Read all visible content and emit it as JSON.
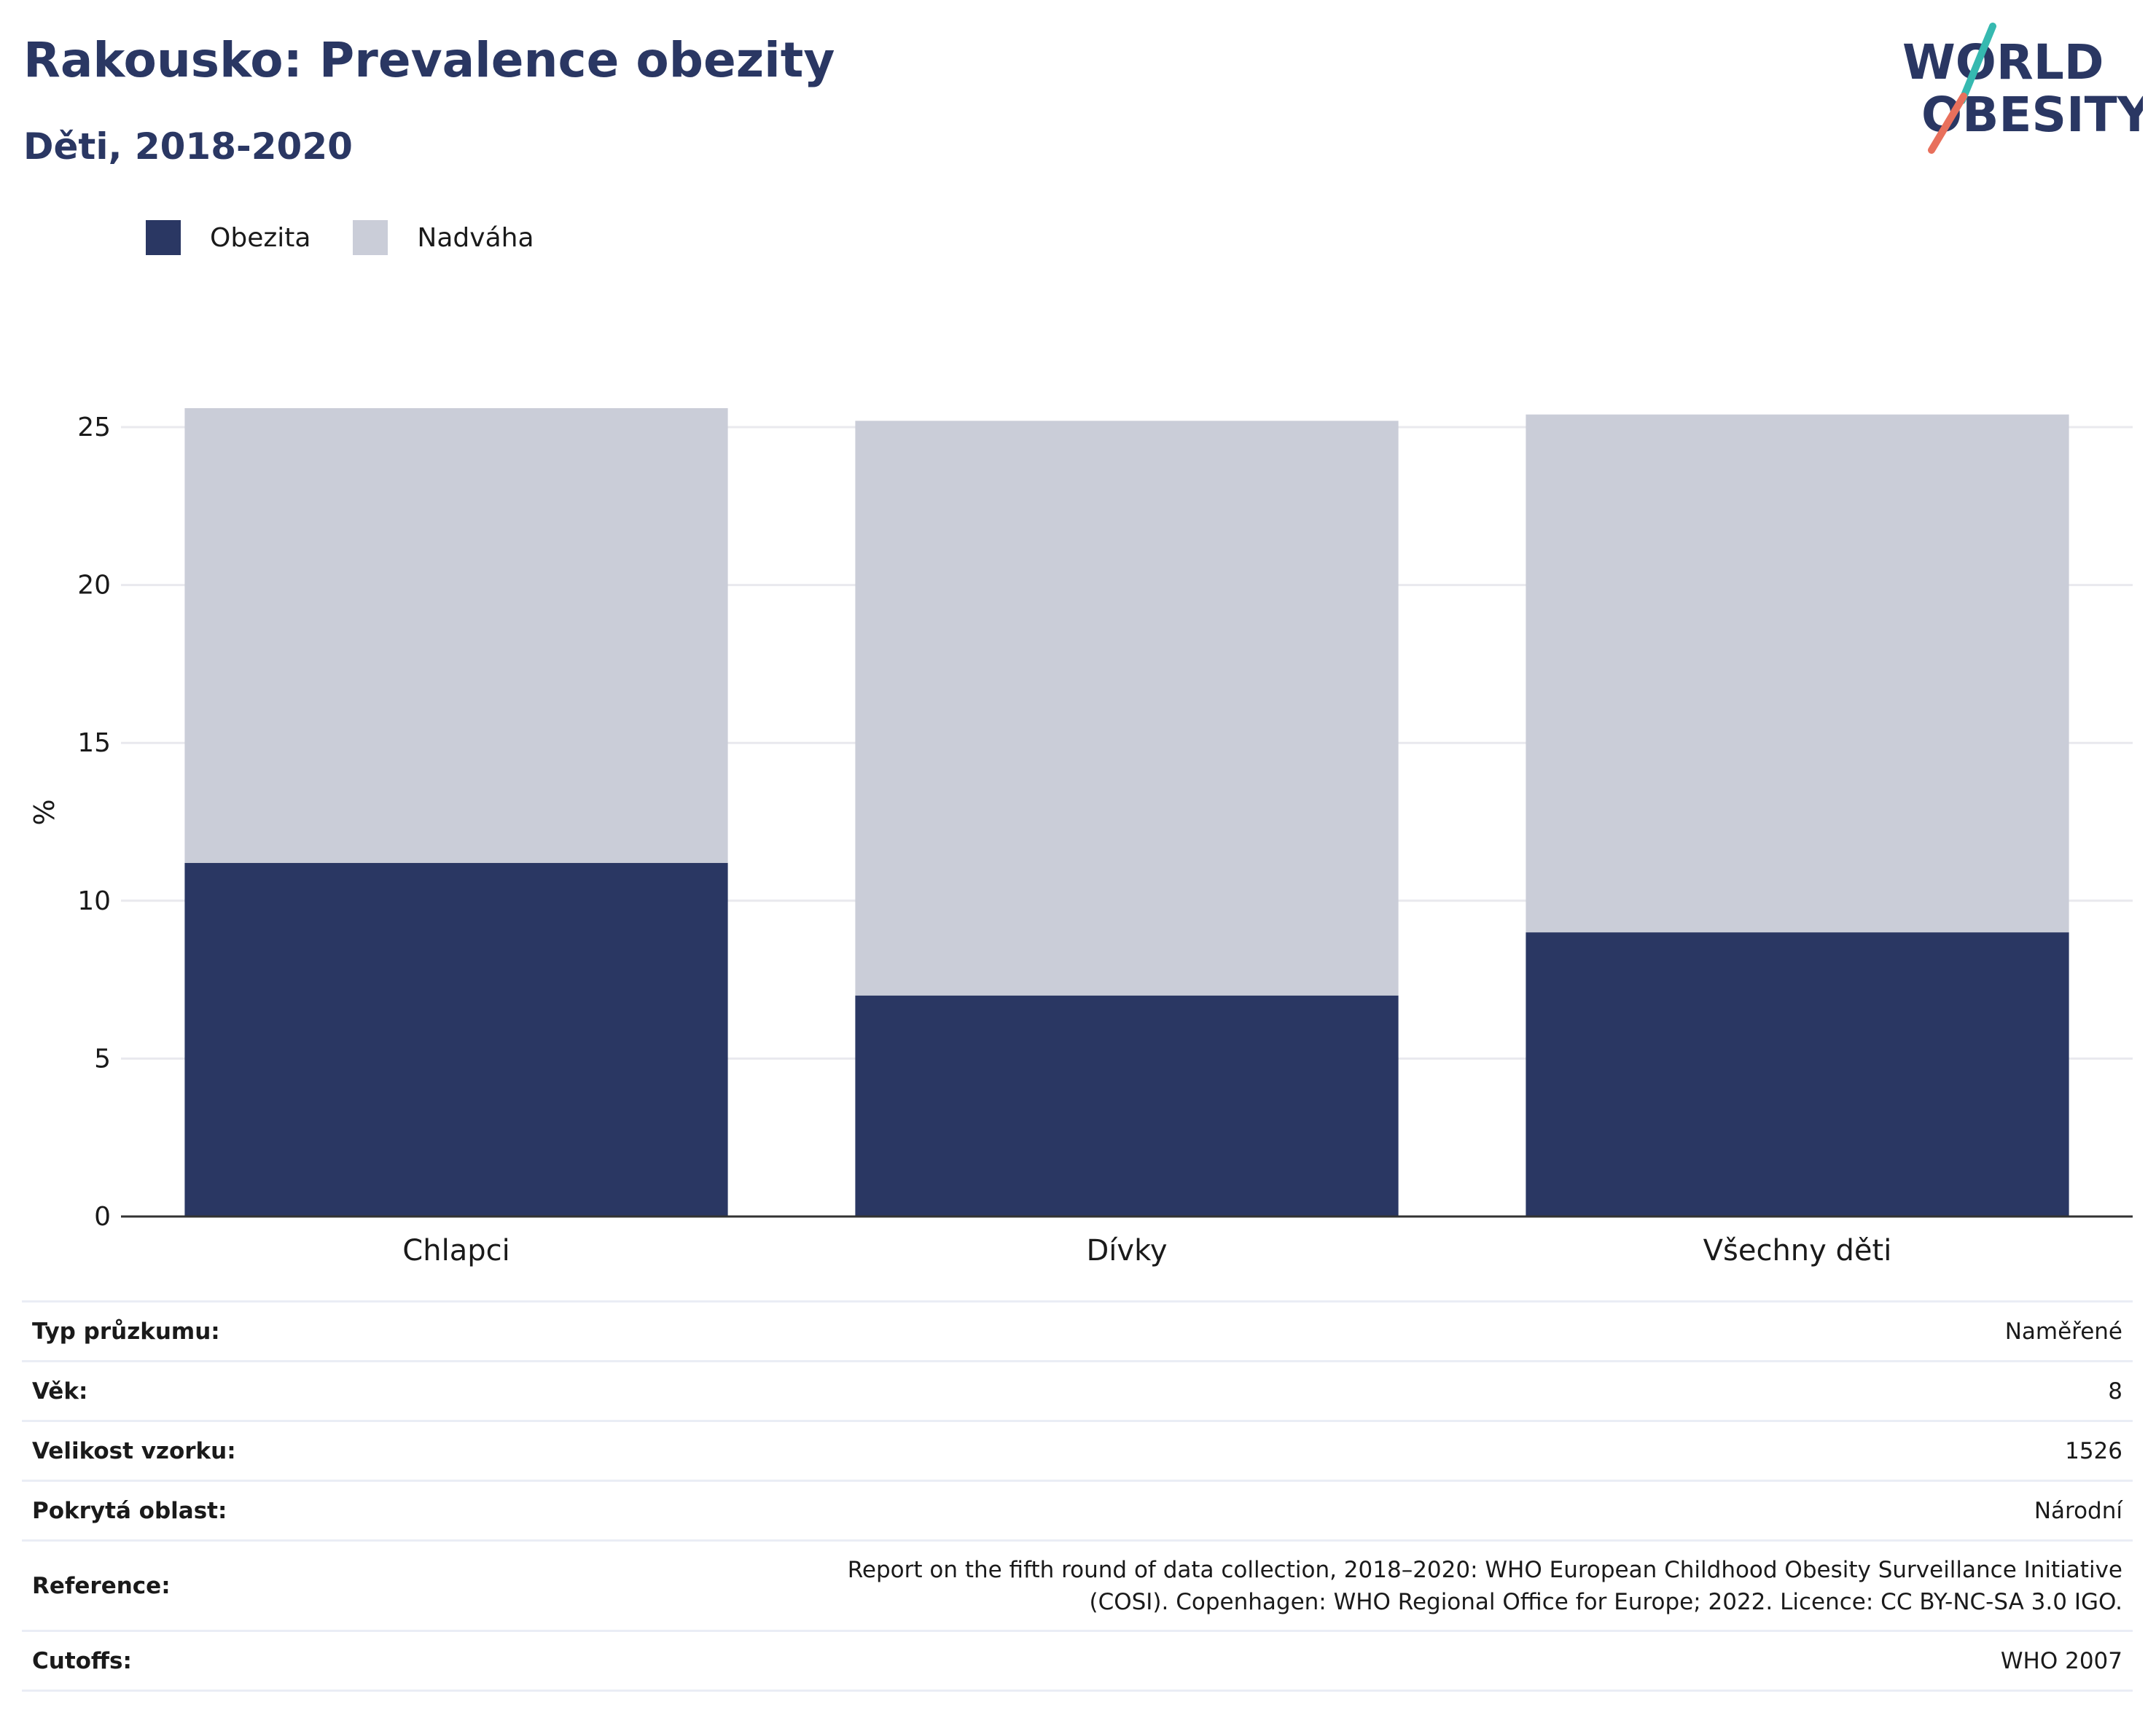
{
  "header": {
    "title": "Rakousko: Prevalence obezity",
    "subtitle": "Děti, 2018-2020"
  },
  "logo": {
    "line1": "WORLD",
    "line2": "OBESITY",
    "accent_teal": "#36b9b0",
    "accent_coral": "#e8705c"
  },
  "colors": {
    "obesity": "#2a3763",
    "overweight": "#cacdd8",
    "gridline": "#e9e9ee",
    "axis": "#333333"
  },
  "chart_data": {
    "type": "bar",
    "stacked": true,
    "categories": [
      "Chlapci",
      "Dívky",
      "Všechny děti"
    ],
    "series": [
      {
        "name": "Obezita",
        "values": [
          11.2,
          7.0,
          9.0
        ]
      },
      {
        "name": "Nadváha",
        "values": [
          14.4,
          18.2,
          16.4
        ]
      }
    ],
    "ylabel": "%",
    "ylim": [
      0,
      25.6
    ],
    "yticks": [
      0,
      5,
      10,
      15,
      20,
      25
    ],
    "grid": true,
    "legend_position": "top-left"
  },
  "info_table": [
    {
      "label": "Typ průzkumu:",
      "value": "Naměřené"
    },
    {
      "label": "Věk:",
      "value": "8"
    },
    {
      "label": "Velikost vzorku:",
      "value": "1526"
    },
    {
      "label": "Pokrytá oblast:",
      "value": "Národní"
    },
    {
      "label": "Reference:",
      "value": "Report on the fifth round of data collection, 2018–2020: WHO European Childhood Obesity Surveillance Initiative (COSI). Copenhagen: WHO Regional Office for Europe; 2022. Licence: CC BY-NC-SA 3.0 IGO."
    },
    {
      "label": "Cutoffs:",
      "value": "WHO 2007"
    }
  ]
}
